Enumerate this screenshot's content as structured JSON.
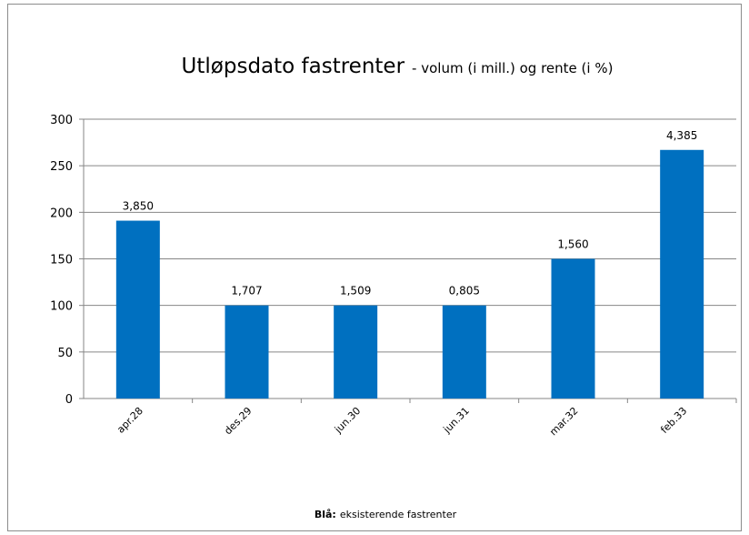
{
  "chart_data": {
    "type": "bar",
    "title": "Utløpsdato fastrenter",
    "subtitle": "- volum (i mill.) og rente (i %)",
    "categories": [
      "apr.28",
      "des.29",
      "jun.30",
      "jun.31",
      "mar.32",
      "feb.33"
    ],
    "values": [
      191,
      100,
      100,
      100,
      150,
      267
    ],
    "rate_labels": [
      "3,850",
      "1,707",
      "1,509",
      "0,805",
      "1,560",
      "4,385"
    ],
    "color": "#0070c0",
    "ylim": [
      0,
      300
    ],
    "yticks": [
      0,
      50,
      100,
      150,
      200,
      250,
      300
    ],
    "grid": true,
    "note": {
      "bold": "Blå:",
      "text": "eksisterende fastrenter"
    }
  }
}
